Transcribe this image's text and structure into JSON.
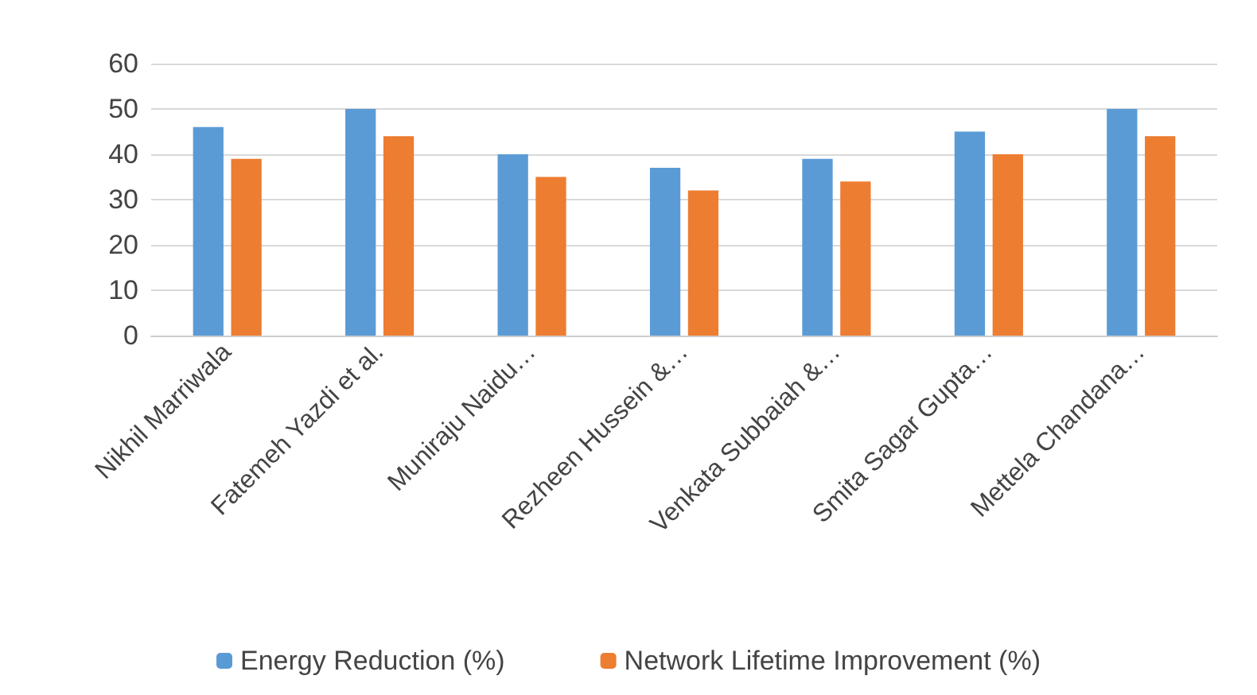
{
  "chart_data": {
    "type": "bar",
    "categories": [
      "Nikhil Marriwala",
      "Fatemeh Yazdi et al.",
      "Muniraju Naidu…",
      "Rezheen Hussein &…",
      "Venkata Subbaiah &…",
      "Smita Sagar Gupta…",
      "Mettela Chandana…"
    ],
    "series": [
      {
        "name": "Energy Reduction (%)",
        "color": "#5b9bd5",
        "values": [
          46,
          50,
          40,
          37,
          39,
          45,
          50
        ]
      },
      {
        "name": "Network Lifetime Improvement (%)",
        "color": "#ed7d31",
        "values": [
          39,
          44,
          35,
          32,
          34,
          40,
          44
        ]
      }
    ],
    "ylim": [
      0,
      60
    ],
    "yticks": [
      0,
      10,
      20,
      30,
      40,
      50,
      60
    ],
    "grid": "y",
    "legend": "bottom"
  }
}
